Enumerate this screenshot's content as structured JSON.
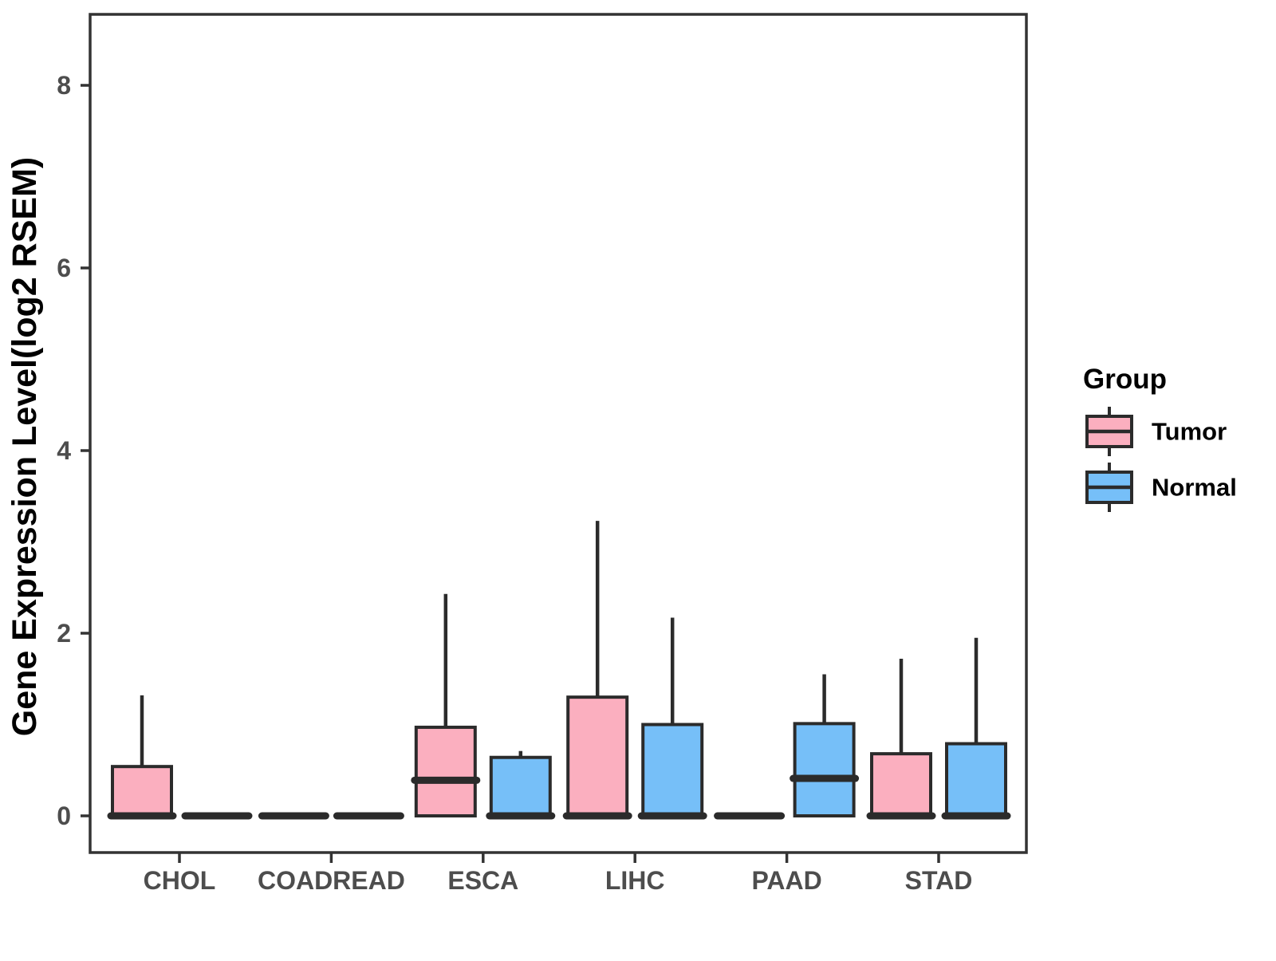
{
  "chart_data": {
    "type": "boxplot",
    "title": "",
    "xlabel": "",
    "ylabel": "Gene Expression Level(log2 RSEM)",
    "y_ticks": [
      0,
      2,
      4,
      6,
      8
    ],
    "y_range": [
      -0.4,
      8.8
    ],
    "grid": "off",
    "legend_position": "right",
    "categories": [
      "CHOL",
      "COADREAD",
      "ESCA",
      "LIHC",
      "PAAD",
      "STAD"
    ],
    "legend": {
      "title": "Group",
      "entries": [
        {
          "label": "Tumor",
          "color": "#FBAFBF"
        },
        {
          "label": "Normal",
          "color": "#76BFF8"
        }
      ]
    },
    "colors": {
      "tumor_fill": "#FBAFBF",
      "normal_fill": "#76BFF8",
      "box_stroke": "#2B2B2B",
      "panel_stroke": "#333333",
      "tick_label": "#4d4d4d"
    },
    "series": [
      {
        "name": "Tumor",
        "color": "#FBAFBF",
        "boxes": [
          {
            "category": "CHOL",
            "low": 0,
            "q1": 0,
            "median": 0,
            "q3": 0.54,
            "high": 1.32
          },
          {
            "category": "COADREAD",
            "low": 0,
            "q1": 0,
            "median": 0,
            "q3": 0,
            "high": 0
          },
          {
            "category": "ESCA",
            "low": 0,
            "q1": 0,
            "median": 0.39,
            "q3": 0.97,
            "high": 2.43
          },
          {
            "category": "LIHC",
            "low": 0,
            "q1": 0,
            "median": 0,
            "q3": 1.3,
            "high": 3.23
          },
          {
            "category": "PAAD",
            "low": 0,
            "q1": 0,
            "median": 0,
            "q3": 0,
            "high": 0
          },
          {
            "category": "STAD",
            "low": 0,
            "q1": 0,
            "median": 0,
            "q3": 0.68,
            "high": 1.72
          }
        ]
      },
      {
        "name": "Normal",
        "color": "#76BFF8",
        "boxes": [
          {
            "category": "CHOL",
            "low": 0,
            "q1": 0,
            "median": 0,
            "q3": 0,
            "high": 0
          },
          {
            "category": "COADREAD",
            "low": 0,
            "q1": 0,
            "median": 0,
            "q3": 0,
            "high": 0
          },
          {
            "category": "ESCA",
            "low": 0,
            "q1": 0,
            "median": 0,
            "q3": 0.64,
            "high": 0.71
          },
          {
            "category": "LIHC",
            "low": 0,
            "q1": 0,
            "median": 0,
            "q3": 1.0,
            "high": 2.17
          },
          {
            "category": "PAAD",
            "low": 0,
            "q1": 0,
            "median": 0.41,
            "q3": 1.01,
            "high": 1.55
          },
          {
            "category": "STAD",
            "low": 0,
            "q1": 0,
            "median": 0,
            "q3": 0.79,
            "high": 1.95
          }
        ]
      }
    ]
  }
}
